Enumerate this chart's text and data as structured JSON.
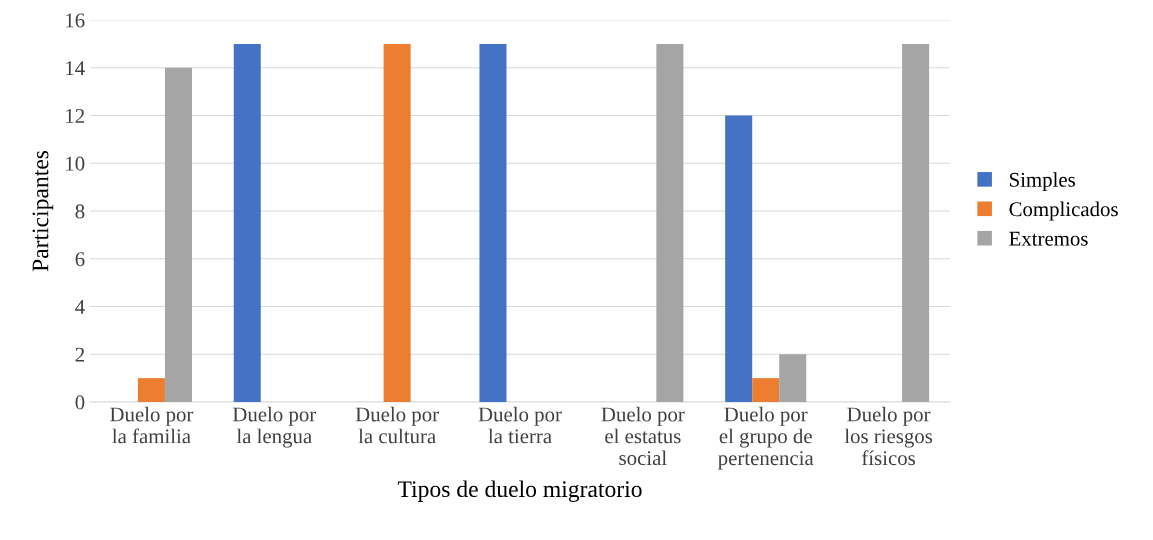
{
  "chart_data": {
    "type": "bar",
    "xlabel": "Tipos de duelo migratorio",
    "ylabel": "Participantes",
    "categories": [
      "Duelo por\nla familia",
      "Duelo por\nla lengua",
      "Duelo por\nla cultura",
      "Duelo por\nla tierra",
      "Duelo por\nel estatus\nsocial",
      "Duelo por\nel grupo de\npertenencia",
      "Duelo por\nlos riesgos\nfísicos"
    ],
    "series": [
      {
        "name": "Simples",
        "color": "#4472c4",
        "values": [
          0,
          15,
          0,
          15,
          0,
          12,
          0
        ]
      },
      {
        "name": "Complicados",
        "color": "#ed7d31",
        "values": [
          1,
          0,
          15,
          0,
          0,
          1,
          0
        ]
      },
      {
        "name": "Extremos",
        "color": "#a5a5a5",
        "values": [
          14,
          0,
          0,
          0,
          15,
          2,
          15
        ]
      }
    ],
    "ylim": [
      0,
      16
    ],
    "yticks": [
      0,
      2,
      4,
      6,
      8,
      10,
      12,
      14,
      16
    ],
    "grid": "y",
    "legend": "right"
  }
}
